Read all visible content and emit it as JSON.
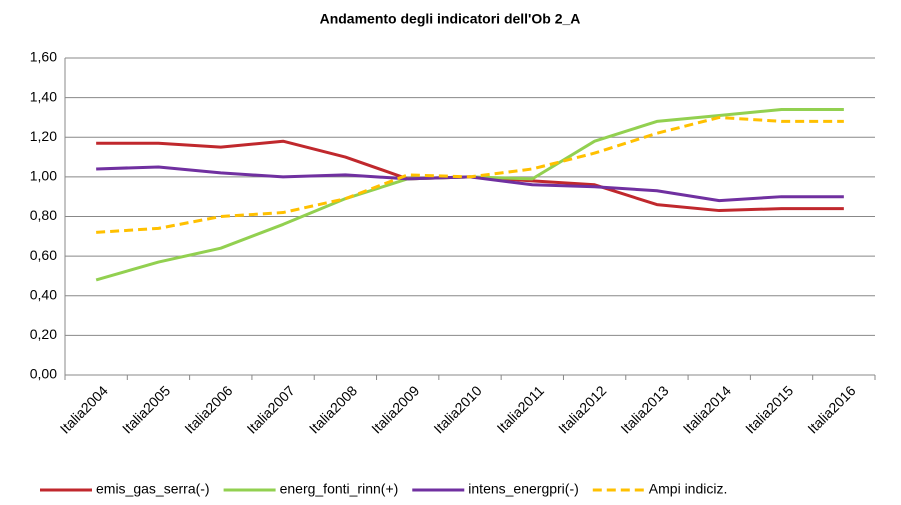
{
  "chart_data": {
    "type": "line",
    "title": "Andamento degli indicatori dell'Ob 2_A",
    "categories": [
      "Italia2004",
      "Italia2005",
      "Italia2006",
      "Italia2007",
      "Italia2008",
      "Italia2009",
      "Italia2010",
      "Italia2011",
      "Italia2012",
      "Italia2013",
      "Italia2014",
      "Italia2015",
      "Italia2016"
    ],
    "series": [
      {
        "name": "emis_gas_serra(-)",
        "color": "#c0282d",
        "values": [
          1.17,
          1.17,
          1.15,
          1.18,
          1.1,
          0.99,
          1.0,
          0.98,
          0.96,
          0.86,
          0.83,
          0.84,
          0.84
        ]
      },
      {
        "name": "energ_fonti_rinn(+)",
        "color": "#92d050",
        "values": [
          0.48,
          0.57,
          0.64,
          0.76,
          0.89,
          0.99,
          1.0,
          0.99,
          1.18,
          1.28,
          1.31,
          1.34,
          1.34
        ]
      },
      {
        "name": "intens_energpri(-)",
        "color": "#7030a0",
        "values": [
          1.04,
          1.05,
          1.02,
          1.0,
          1.01,
          0.99,
          1.0,
          0.96,
          0.95,
          0.93,
          0.88,
          0.9,
          0.9
        ]
      },
      {
        "name": "Ampi indiciz.",
        "color": "#ffc000",
        "dashed": true,
        "values": [
          0.72,
          0.74,
          0.8,
          0.82,
          0.89,
          1.01,
          1.0,
          1.04,
          1.12,
          1.22,
          1.3,
          1.28,
          1.28
        ]
      }
    ],
    "ylim": [
      0,
      1.6
    ],
    "yticks": [
      {
        "value": 0,
        "label": "0,00"
      },
      {
        "value": 0.2,
        "label": "0,20"
      },
      {
        "value": 0.4,
        "label": "0,40"
      },
      {
        "value": 0.6,
        "label": "0,60"
      },
      {
        "value": 0.8,
        "label": "0,80"
      },
      {
        "value": 1,
        "label": "1,00"
      },
      {
        "value": 1.2,
        "label": "1,20"
      },
      {
        "value": 1.4,
        "label": "1,40"
      },
      {
        "value": 1.6,
        "label": "1,60"
      }
    ],
    "grid": true,
    "legend": "bottom"
  }
}
